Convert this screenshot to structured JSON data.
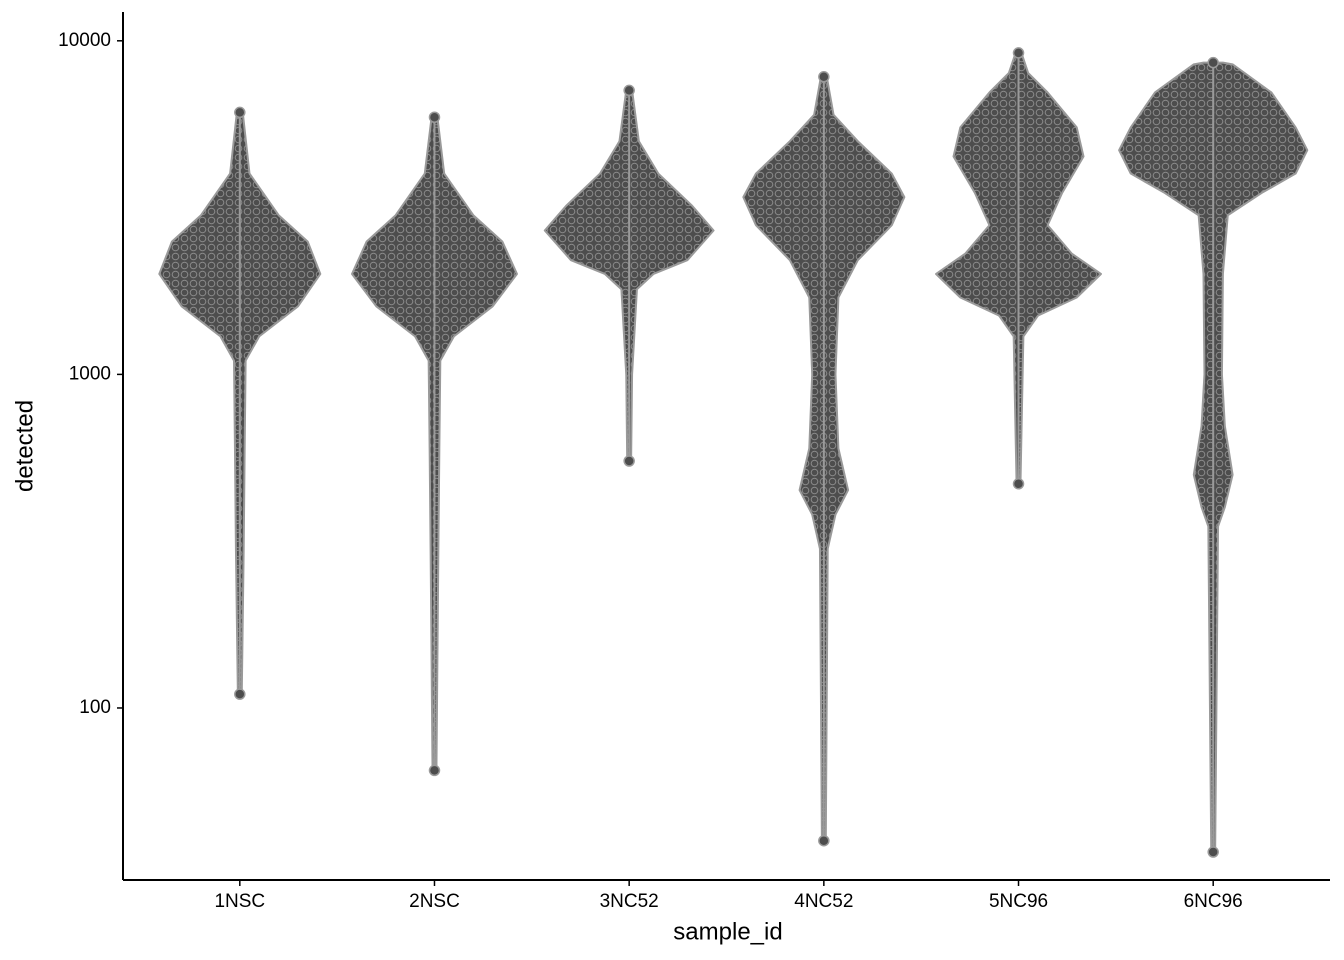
{
  "chart_data": {
    "type": "violin",
    "x_label": "sample_id",
    "y_label": "detected",
    "log_y": true,
    "ylim": [
      30.5,
      12200
    ],
    "yticks": [
      100,
      1000,
      10000
    ],
    "color": "#4d4d4d",
    "outline_color": "#9a9a9a",
    "categories": [
      "1NSC",
      "2NSC",
      "3NC52",
      "4NC52",
      "5NC96",
      "6NC96"
    ],
    "series": [
      {
        "min": 110,
        "max": 6100,
        "y": [
          6100,
          4000,
          3000,
          2500,
          2000,
          1600,
          1300,
          1100,
          600,
          300,
          110
        ],
        "density": [
          0.03,
          0.1,
          0.4,
          0.7,
          0.83,
          0.6,
          0.2,
          0.06,
          0.05,
          0.04,
          0.02
        ]
      },
      {
        "min": 65,
        "max": 5900,
        "y": [
          5900,
          4000,
          3000,
          2500,
          2000,
          1600,
          1300,
          1100,
          600,
          300,
          65
        ],
        "density": [
          0.03,
          0.1,
          0.4,
          0.7,
          0.85,
          0.6,
          0.2,
          0.06,
          0.05,
          0.04,
          0.02
        ]
      },
      {
        "min": 550,
        "max": 7100,
        "y": [
          7100,
          5000,
          4000,
          3200,
          2700,
          2200,
          2000,
          1800,
          1000,
          550
        ],
        "density": [
          0.03,
          0.1,
          0.3,
          0.65,
          0.87,
          0.6,
          0.25,
          0.08,
          0.03,
          0.02
        ]
      },
      {
        "min": 40,
        "max": 7800,
        "y": [
          7800,
          6000,
          5000,
          4000,
          3400,
          2800,
          2200,
          1700,
          1000,
          600,
          450,
          380,
          300,
          40
        ],
        "density": [
          0.03,
          0.1,
          0.35,
          0.7,
          0.83,
          0.7,
          0.35,
          0.15,
          0.12,
          0.15,
          0.25,
          0.12,
          0.04,
          0.02
        ]
      },
      {
        "min": 470,
        "max": 9200,
        "y": [
          9200,
          8000,
          7000,
          5500,
          4500,
          3500,
          2800,
          2300,
          2000,
          1700,
          1500,
          1300,
          470
        ],
        "density": [
          0.03,
          0.1,
          0.3,
          0.6,
          0.67,
          0.45,
          0.3,
          0.55,
          0.85,
          0.6,
          0.2,
          0.05,
          0.02
        ]
      },
      {
        "min": 37,
        "max": 8600,
        "y": [
          8600,
          8500,
          7000,
          5500,
          4700,
          4000,
          3500,
          3000,
          2000,
          1000,
          700,
          500,
          400,
          350,
          37
        ],
        "density": [
          0.1,
          0.2,
          0.6,
          0.85,
          0.97,
          0.85,
          0.5,
          0.15,
          0.1,
          0.09,
          0.12,
          0.2,
          0.12,
          0.05,
          0.02
        ]
      }
    ]
  }
}
